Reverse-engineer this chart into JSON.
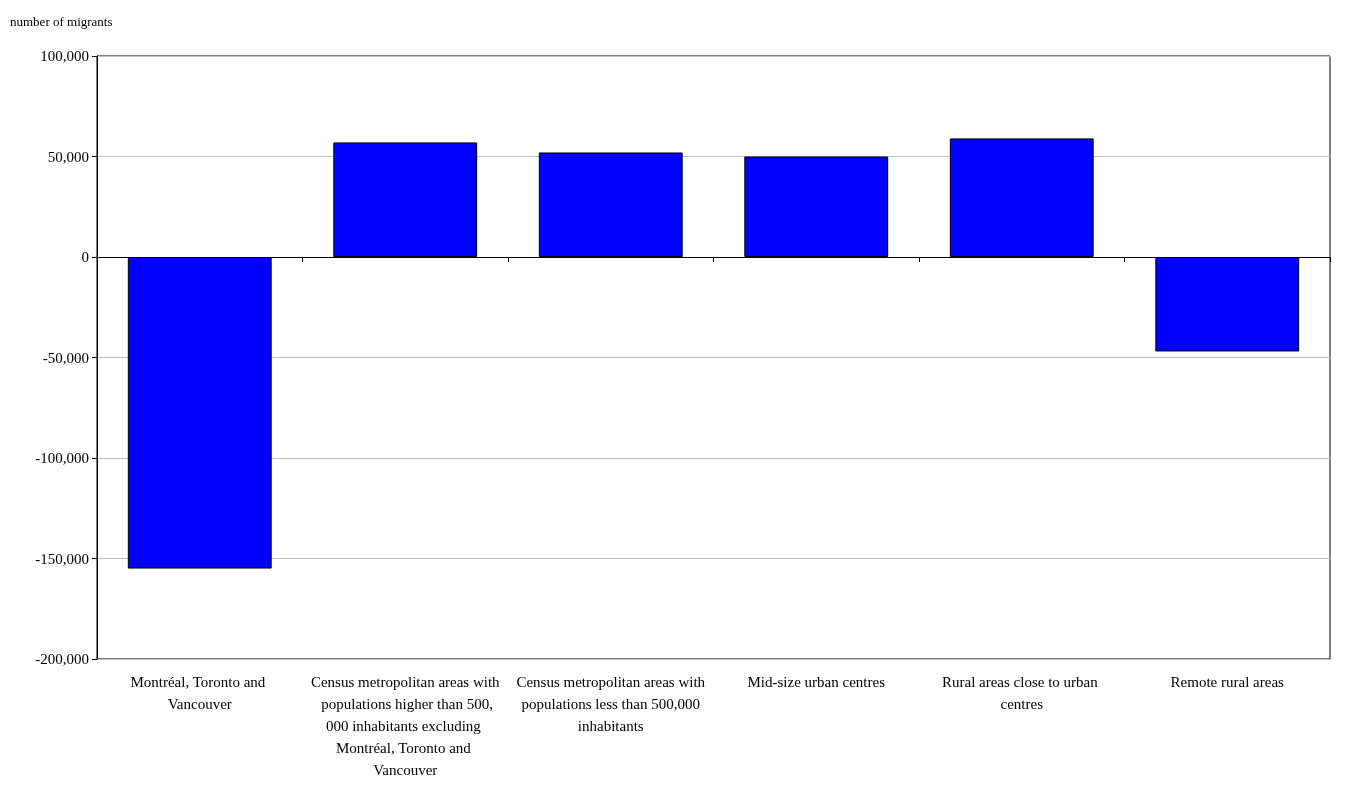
{
  "chart_data": {
    "type": "bar",
    "ylabel": "number of migrants",
    "categories": [
      "Montréal, Toronto and Vancouver",
      "Census metropolitan areas with populations higher than 500,000 inhabitants excluding Montréal, Toronto and Vancouver",
      "Census metropolitan areas with populations less than 500,000 inhabitants",
      "Mid-size urban centres",
      "Rural areas close to urban centres",
      "Remote rural areas"
    ],
    "values": [
      -155000,
      57000,
      52000,
      50000,
      59000,
      -47000
    ],
    "color": "#0000ff",
    "ylim": [
      -200000,
      100000
    ],
    "yticks": [
      {
        "value": -200000,
        "label": "-200,000"
      },
      {
        "value": -150000,
        "label": "-150,000"
      },
      {
        "value": -100000,
        "label": "-100,000"
      },
      {
        "value": -50000,
        "label": "-50,000"
      },
      {
        "value": 0,
        "label": "0"
      },
      {
        "value": 50000,
        "label": "50,000"
      },
      {
        "value": 100000,
        "label": "100,000"
      }
    ],
    "grid": "y"
  }
}
